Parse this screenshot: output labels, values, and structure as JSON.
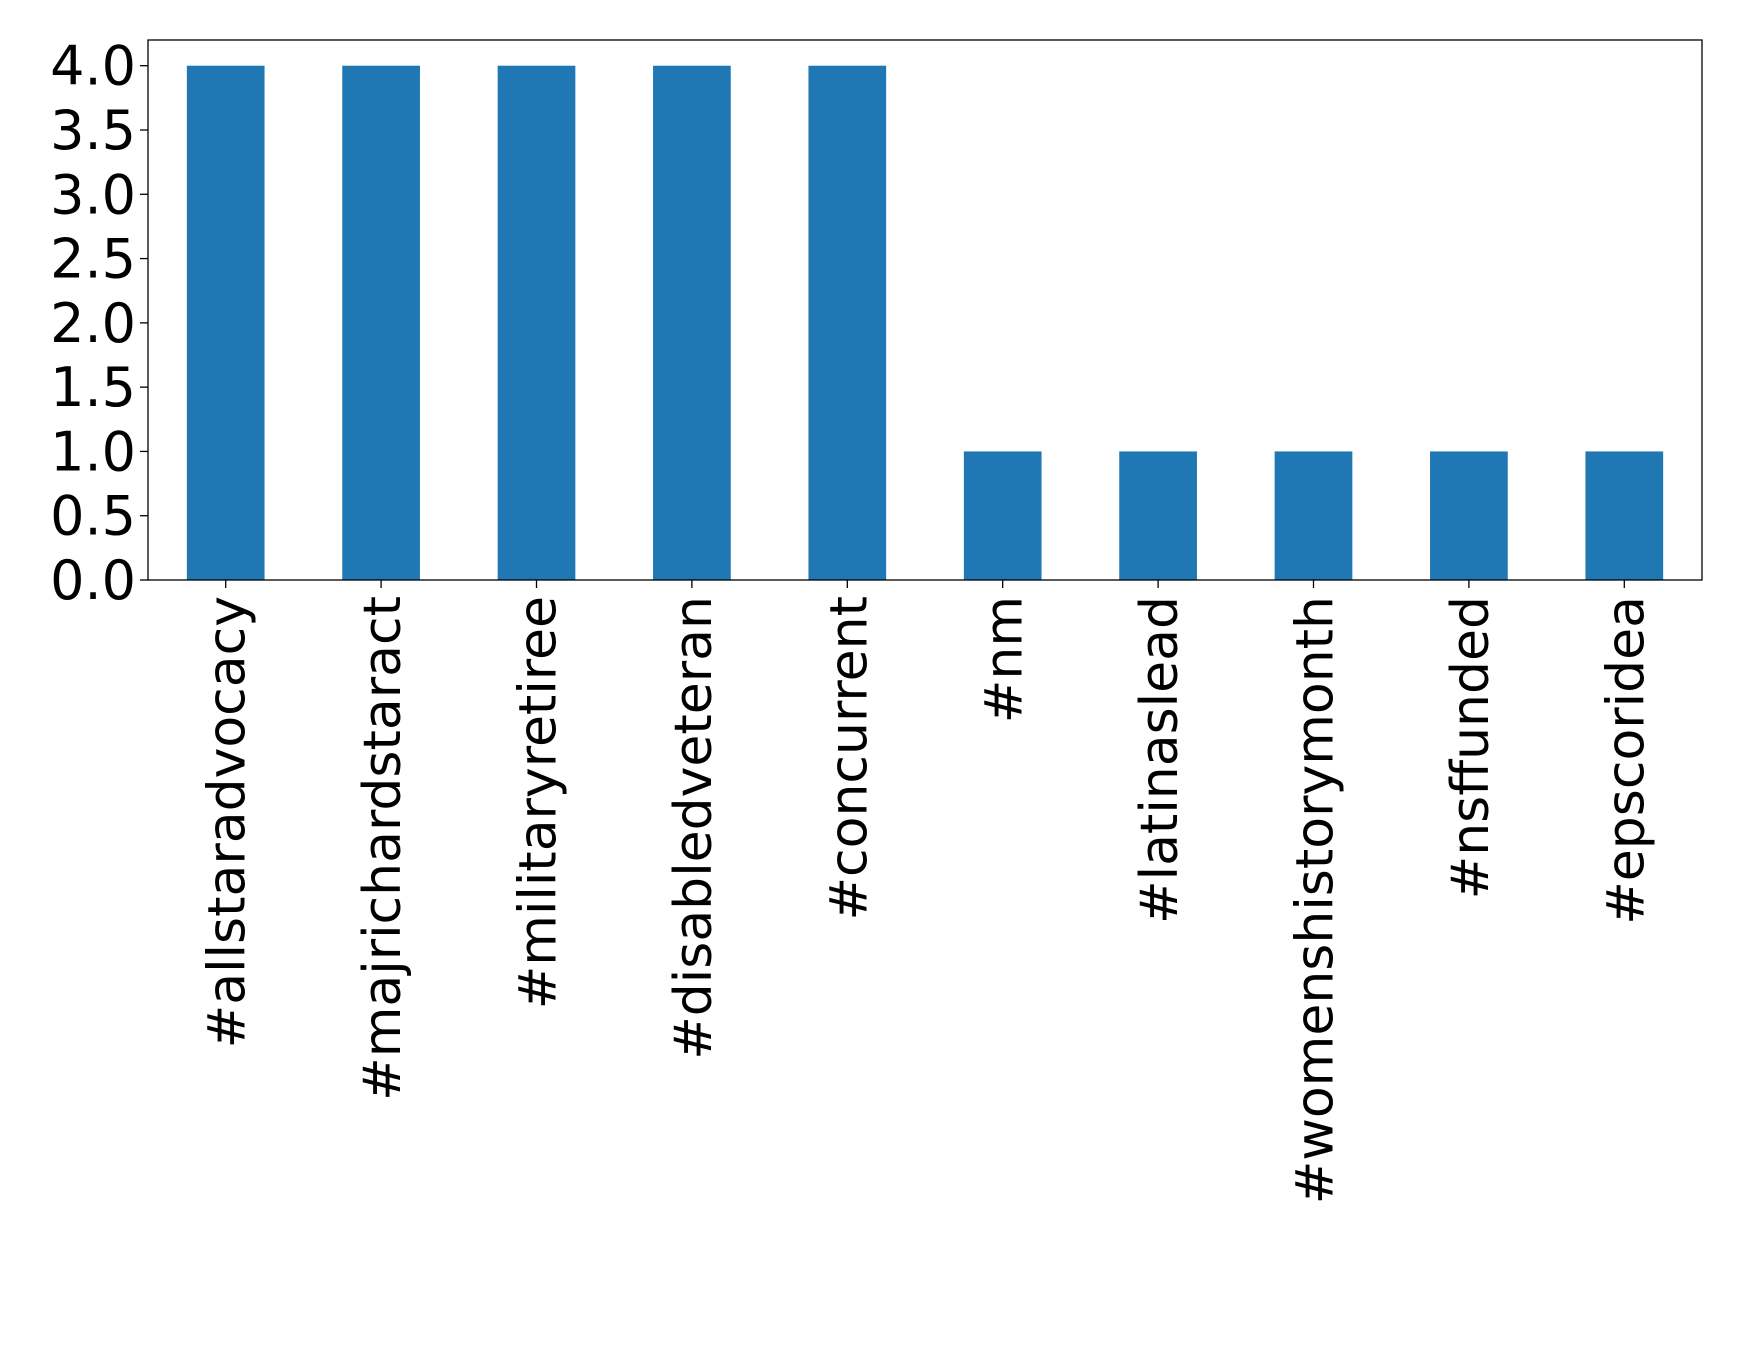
{
  "chart_data": {
    "type": "bar",
    "title": "",
    "xlabel": "",
    "ylabel": "",
    "categories": [
      "#allstaradvocacy",
      "#majrichardstaract",
      "#militaryretiree",
      "#disabledveteran",
      "#concurrent",
      "#nm",
      "#latinaslead",
      "#womenshistorymonth",
      "#nsffunded",
      "#epscoridea"
    ],
    "values": [
      4,
      4,
      4,
      4,
      4,
      1,
      1,
      1,
      1,
      1
    ],
    "ylim": [
      0,
      4.2
    ],
    "yticks": [
      "0.0",
      "0.5",
      "1.0",
      "1.5",
      "2.0",
      "2.5",
      "3.0",
      "3.5",
      "4.0"
    ],
    "bar_color": "#1f77b4",
    "grid": false,
    "legend": "none"
  }
}
